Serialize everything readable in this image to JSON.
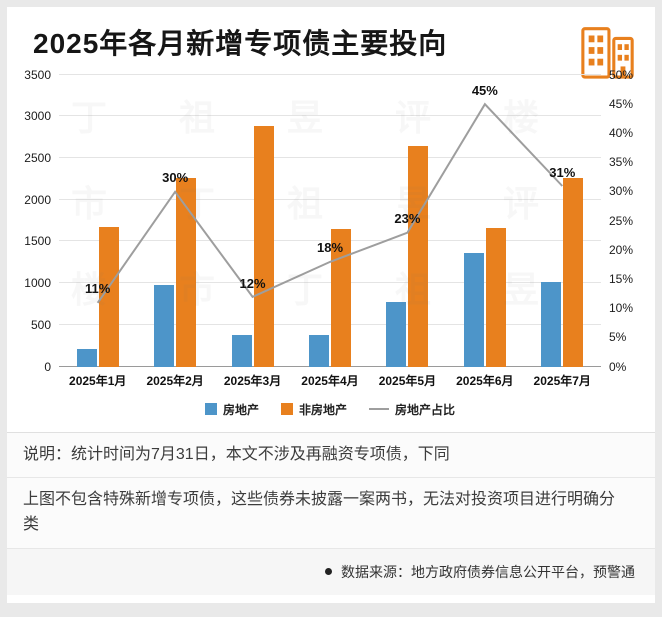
{
  "header": {
    "title": "2025年各月新增专项债主要投向",
    "icon": "buildings-icon",
    "icon_color": "#e8801e"
  },
  "chart_data": {
    "type": "bar",
    "title": "2025年各月新增专项债主要投向",
    "categories": [
      "2025年1月",
      "2025年2月",
      "2025年3月",
      "2025年4月",
      "2025年5月",
      "2025年6月",
      "2025年7月"
    ],
    "series": [
      {
        "name": "房地产",
        "type": "bar",
        "axis": "left",
        "color": "#4d95c9",
        "values": [
          220,
          980,
          380,
          380,
          780,
          1370,
          1020
        ]
      },
      {
        "name": "非房地产",
        "type": "bar",
        "axis": "left",
        "color": "#e8801e",
        "values": [
          1680,
          2270,
          2890,
          1660,
          2650,
          1670,
          2260
        ]
      },
      {
        "name": "房地产占比",
        "type": "line",
        "axis": "right",
        "color": "#9e9e9e",
        "values": [
          11,
          30,
          12,
          18,
          23,
          45,
          31
        ],
        "labels": [
          "11%",
          "30%",
          "12%",
          "18%",
          "23%",
          "45%",
          "31%"
        ]
      }
    ],
    "y_left": {
      "min": 0,
      "max": 3500,
      "step": 500,
      "ticks": [
        "3500",
        "3000",
        "2500",
        "2000",
        "1500",
        "1000",
        "500",
        "0"
      ]
    },
    "y_right": {
      "min": 0,
      "max": 50,
      "step": 5,
      "ticks": [
        "50%",
        "45%",
        "40%",
        "35%",
        "30%",
        "25%",
        "20%",
        "15%",
        "10%",
        "5%",
        "0%"
      ]
    },
    "grid": true,
    "legend_position": "bottom"
  },
  "legend": [
    {
      "label": "房地产",
      "color": "#4d95c9",
      "marker": "square"
    },
    {
      "label": "非房地产",
      "color": "#e8801e",
      "marker": "square"
    },
    {
      "label": "房地产占比",
      "color": "#9e9e9e",
      "marker": "line"
    }
  ],
  "notes": {
    "line1": "说明：统计时间为7月31日，本文不涉及再融资专项债，下同",
    "line2": "上图不包含特殊新增专项债，这些债券未披露一案两书，无法对投资项目进行明确分类",
    "source": "数据来源：地方政府债券信息公开平台，预警通"
  },
  "watermark": {
    "text": "丁祖昱评楼市"
  }
}
